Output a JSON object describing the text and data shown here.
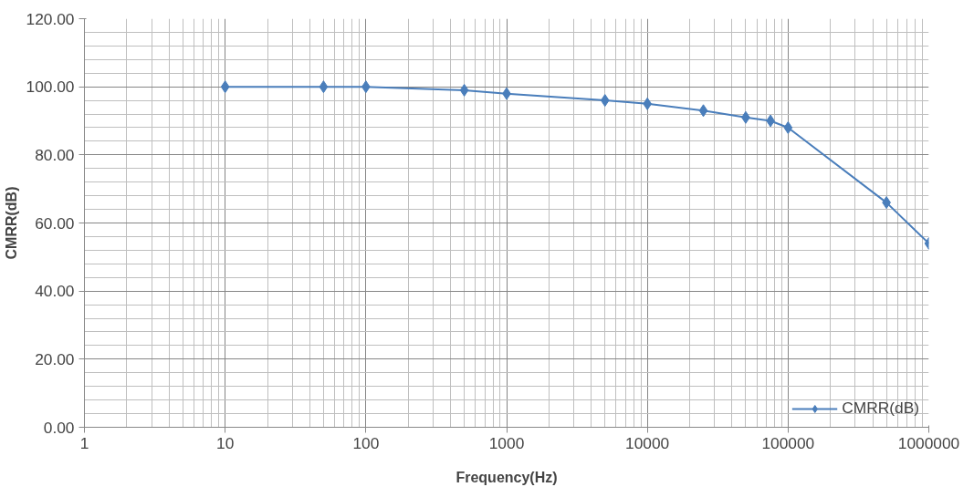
{
  "chart_data": {
    "type": "line",
    "xlabel": "Frequency(Hz)",
    "ylabel": "CMRR(dB)",
    "x": [
      10,
      50,
      100,
      500,
      1000,
      5000,
      10000,
      25000,
      50000,
      75000,
      100000,
      500000,
      1000000
    ],
    "series": [
      {
        "name": "CMRR(dB)",
        "color": "#4a7ebb",
        "values": [
          100,
          100,
          100,
          99,
          98,
          96,
          95,
          93,
          91,
          90,
          88,
          66,
          54
        ]
      }
    ],
    "log": "x",
    "xlim": [
      1,
      1000000
    ],
    "xticks": [
      1,
      10,
      100,
      1000,
      10000,
      100000,
      1000000
    ],
    "ylim": [
      0,
      120
    ],
    "yticks": [
      {
        "value": 0,
        "label": "0.00"
      },
      {
        "value": 20,
        "label": "20.00"
      },
      {
        "value": 40,
        "label": "40.00"
      },
      {
        "value": 60,
        "label": "60.00"
      },
      {
        "value": 80,
        "label": "80.00"
      },
      {
        "value": 100,
        "label": "100.00"
      },
      {
        "value": 120,
        "label": "120.00"
      }
    ],
    "grid": true,
    "legend": "bottom right",
    "marker": "diamond",
    "line_style": "solid"
  }
}
